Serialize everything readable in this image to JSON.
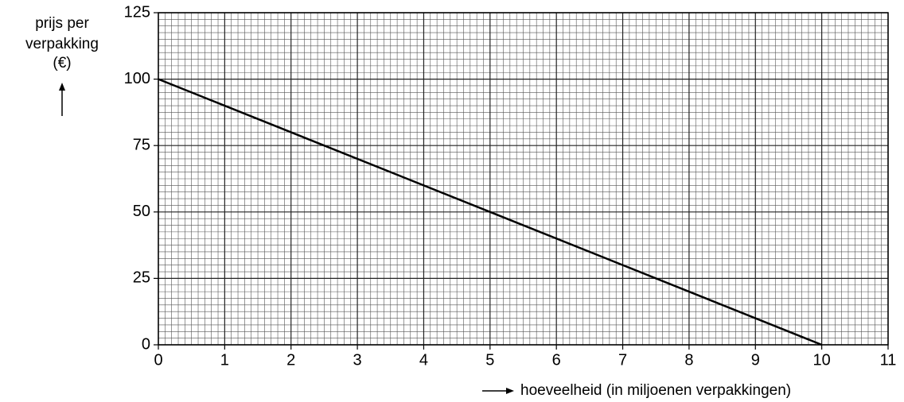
{
  "chart_data": {
    "type": "line",
    "ylabel": [
      "prijs per",
      "verpakking",
      "(€)"
    ],
    "xlabel": "hoeveelheid (in miljoenen verpakkingen)",
    "x": [
      0,
      10
    ],
    "series": [
      {
        "color": "#000000",
        "values": [
          100,
          0
        ]
      }
    ],
    "xlim": [
      0,
      11
    ],
    "xticks": [
      0,
      1,
      2,
      3,
      4,
      5,
      6,
      7,
      8,
      9,
      10,
      11
    ],
    "ylim": [
      0,
      125
    ],
    "yticks": [
      0,
      25,
      50,
      75,
      100,
      125
    ],
    "grid": true,
    "minor_divisions": 10
  }
}
